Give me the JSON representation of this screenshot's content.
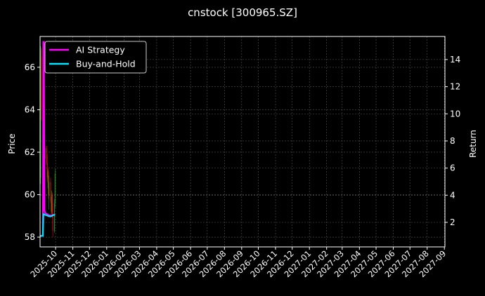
{
  "chart_data": {
    "type": "candlestick+line",
    "title": "cnstock [300965.SZ]",
    "ylabel_left": "Price",
    "ylabel_right": "Return",
    "xlim": [
      "2025-09-03",
      "2027-09-02"
    ],
    "ylim_left": [
      57.54,
      67.45
    ],
    "ylim_right": [
      0.19,
      15.7
    ],
    "yticks_left": [
      58,
      60,
      62,
      64,
      66
    ],
    "yticks_right": [
      2,
      4,
      6,
      8,
      10,
      12,
      14
    ],
    "xticks": [
      "2025-10",
      "2025-11",
      "2025-12",
      "2026-01",
      "2026-02",
      "2026-03",
      "2026-04",
      "2026-05",
      "2026-06",
      "2026-07",
      "2026-08",
      "2026-09",
      "2026-10",
      "2026-11",
      "2026-12",
      "2027-01",
      "2027-02",
      "2027-03",
      "2027-04",
      "2027-05",
      "2027-06",
      "2027-07",
      "2027-08",
      "2027-09"
    ],
    "grid": true,
    "legend_placement": "top-left",
    "colors": {
      "up": "#1a9e1a",
      "down": "#d01010",
      "ai": "#ff00ff",
      "bh": "#00e5ff",
      "grid": "#555555"
    },
    "dates": [
      "2025-09-03",
      "2025-09-04",
      "2025-09-05",
      "2025-09-08",
      "2025-09-09",
      "2025-09-10",
      "2025-09-11",
      "2025-09-12",
      "2025-09-15",
      "2025-09-16",
      "2025-09-17",
      "2025-09-18",
      "2025-09-19",
      "2025-09-22",
      "2025-09-23",
      "2025-09-24",
      "2025-09-25",
      "2025-09-26",
      "2025-09-29",
      "2025-09-30"
    ],
    "ohlc": [
      [
        66.5,
        66.9,
        60.3,
        60.6
      ],
      [
        60.8,
        67.0,
        60.5,
        66.8
      ],
      [
        66.5,
        66.9,
        63.5,
        64.0
      ],
      [
        64.0,
        64.5,
        62.8,
        63.2
      ],
      [
        63.2,
        64.7,
        63.0,
        64.5
      ],
      [
        64.4,
        64.6,
        62.4,
        62.6
      ],
      [
        62.6,
        62.9,
        61.5,
        61.7
      ],
      [
        61.7,
        62.3,
        61.4,
        62.2
      ],
      [
        62.2,
        62.3,
        61.4,
        61.5
      ],
      [
        61.5,
        61.9,
        60.6,
        60.8
      ],
      [
        60.8,
        61.2,
        60.3,
        61.1
      ],
      [
        61.1,
        61.3,
        59.8,
        60.0
      ],
      [
        60.0,
        60.9,
        59.3,
        60.6
      ],
      [
        60.6,
        60.8,
        59.6,
        59.7
      ],
      [
        59.7,
        59.9,
        59.0,
        59.2
      ],
      [
        59.2,
        60.2,
        59.1,
        60.0
      ],
      [
        60.0,
        60.1,
        58.9,
        59.1
      ],
      [
        59.1,
        59.6,
        58.0,
        58.3
      ],
      [
        58.3,
        59.8,
        58.2,
        59.6
      ],
      [
        59.6,
        61.2,
        59.4,
        61.0
      ]
    ],
    "series": [
      {
        "name": "AI Strategy",
        "values": [
          1,
          1,
          1,
          1,
          15.3,
          15.3,
          2.9,
          2.7,
          2.62,
          2.6,
          2.57,
          2.55,
          2.53,
          2.5,
          2.5,
          2.52,
          2.53,
          2.55,
          2.57,
          2.57
        ]
      },
      {
        "name": "Buy-and-Hold",
        "values": [
          1,
          1,
          1,
          1,
          2.6,
          2.6,
          2.58,
          2.55,
          2.52,
          2.5,
          2.48,
          2.47,
          2.45,
          2.44,
          2.45,
          2.47,
          2.5,
          2.52,
          2.55,
          2.55
        ]
      }
    ]
  }
}
